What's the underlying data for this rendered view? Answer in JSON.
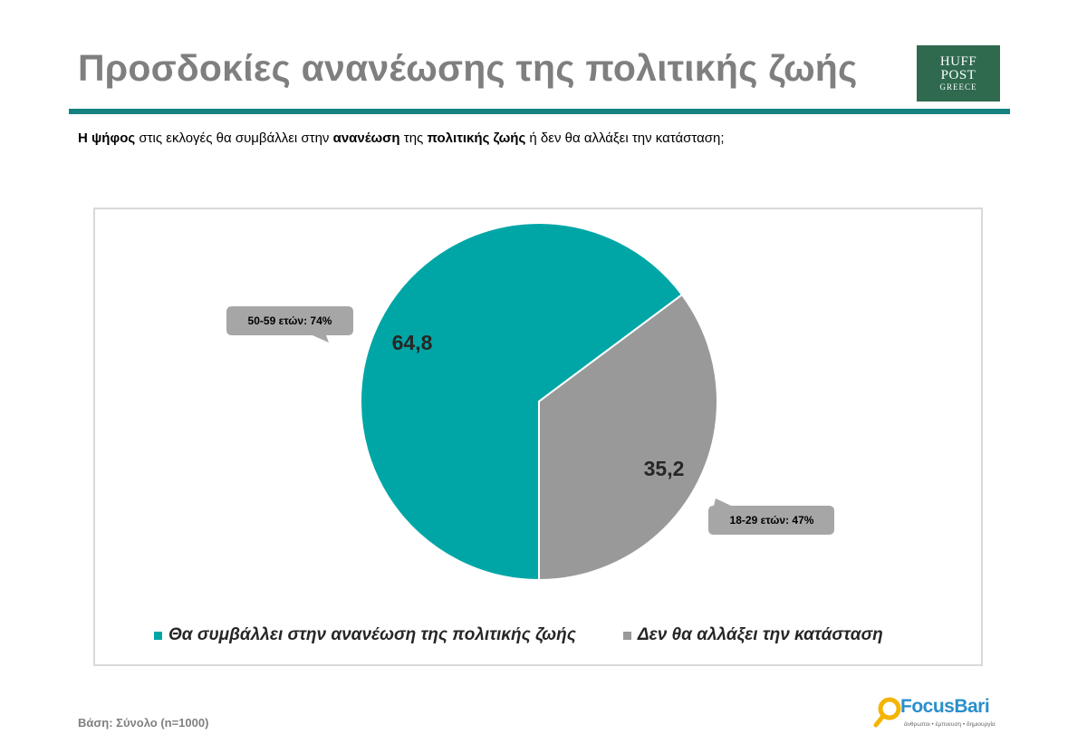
{
  "header": {
    "title": "Προσδοκίες ανανέωσης της πολιτικής ζωής",
    "logo_huff_line1": "HUFF",
    "logo_huff_line2": "POST",
    "logo_huff_line3": "GREECE"
  },
  "question": {
    "part1": "Η ψήφος",
    "part2": " στις εκλογές  θα συμβάλλει στην ",
    "part3": "ανανέωση",
    "part4": " της ",
    "part5": "πολιτικής ζωής",
    "part6": " ή δεν θα αλλάξει την κατάσταση;"
  },
  "chart_data": {
    "type": "pie",
    "categories": [
      "Θα συμβάλλει στην ανανέωση της πολιτικής ζωής",
      "Δεν θα αλλάξει την κατάσταση"
    ],
    "values": [
      64.8,
      35.2
    ],
    "value_labels": [
      "64,8",
      "35,2"
    ],
    "colors": [
      "#00a6a6",
      "#999999"
    ],
    "legend_position": "bottom",
    "annotations": [
      "50-59 ετών: 74%",
      "18-29 ετών: 47%"
    ]
  },
  "footer": {
    "base_note": "Βάση: Σύνολο (n=1000)",
    "brand_name": "FocusBari",
    "brand_tagline": "άνθρωποι • έμπνευση • δημιουργία"
  }
}
